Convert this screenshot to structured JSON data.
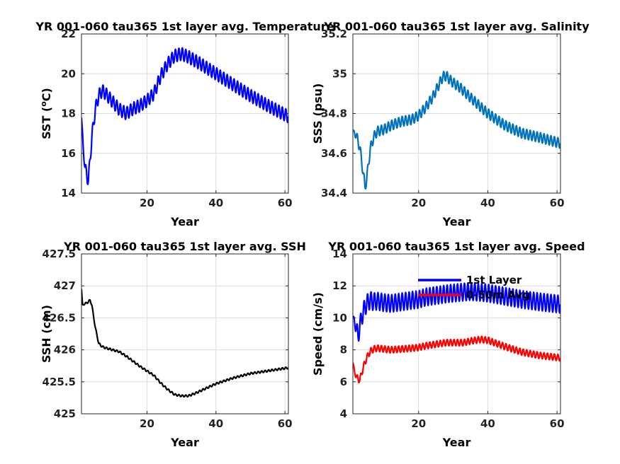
{
  "chart_data": [
    {
      "type": "line",
      "title": "YR 001-060 tau365 1st layer avg. Temperature",
      "xlabel": "Year",
      "ylabel": "SST (°C)",
      "ylabel_main": "SST (",
      "ylabel_sup": "o",
      "ylabel_tail": "C)",
      "xlim": [
        1,
        61
      ],
      "ylim": [
        14,
        22
      ],
      "xticks": [
        20,
        40,
        60
      ],
      "yticks": [
        14,
        16,
        18,
        20,
        22
      ],
      "color": "#0000ff",
      "osc_amp": 0.32,
      "series": [
        {
          "x": [
            1,
            1.5,
            2,
            3,
            4,
            5,
            6,
            7,
            8,
            10,
            12,
            14,
            16,
            18,
            20,
            22,
            24,
            26,
            28,
            30,
            32,
            35,
            40,
            45,
            50,
            55,
            61
          ],
          "y": [
            17.8,
            16.3,
            15.3,
            14.6,
            16.8,
            18.2,
            18.9,
            19.15,
            19.0,
            18.6,
            18.2,
            18.0,
            18.25,
            18.4,
            18.65,
            19.0,
            19.9,
            20.5,
            20.9,
            21.0,
            20.85,
            20.55,
            20.0,
            19.45,
            18.9,
            18.4,
            17.85
          ]
        }
      ]
    },
    {
      "type": "line",
      "title": "YR 001-060 tau365 1st layer avg. Salinity",
      "xlabel": "Year",
      "ylabel": "SSS (psu)",
      "xlim": [
        1,
        61
      ],
      "ylim": [
        34.4,
        35.2
      ],
      "xticks": [
        20,
        40,
        60
      ],
      "yticks": [
        34.4,
        34.6,
        34.8,
        35,
        35.2
      ],
      "ytick_labels": [
        "34.4",
        "34.6",
        "34.8",
        "35",
        "35.2"
      ],
      "color": "#0072bd",
      "osc_amp": 0.025,
      "series": [
        {
          "x": [
            1,
            2,
            3,
            4,
            4.5,
            5,
            6,
            7,
            8,
            10,
            12,
            15,
            18,
            20,
            22,
            24,
            26,
            27,
            28,
            29,
            30,
            32,
            35,
            40,
            45,
            50,
            55,
            61
          ],
          "y": [
            34.71,
            34.69,
            34.63,
            34.5,
            34.43,
            34.47,
            34.62,
            34.68,
            34.71,
            34.72,
            34.74,
            34.76,
            34.77,
            34.79,
            34.83,
            34.88,
            34.95,
            34.985,
            34.99,
            34.97,
            34.955,
            34.93,
            34.88,
            34.8,
            34.74,
            34.7,
            34.68,
            34.65
          ]
        }
      ]
    },
    {
      "type": "line",
      "title": "YR 001-060 tau365 1st layer avg. SSH",
      "xlabel": "Year",
      "ylabel": "SSH (cm)",
      "xlim": [
        1,
        61
      ],
      "ylim": [
        425,
        427.5
      ],
      "xticks": [
        20,
        40,
        60
      ],
      "yticks": [
        425,
        425.5,
        426,
        426.5,
        427,
        427.5
      ],
      "ytick_labels": [
        "425",
        "425.5",
        "426",
        "426.5",
        "427",
        "427.5"
      ],
      "color": "#000000",
      "osc_amp": 0.015,
      "series": [
        {
          "x": [
            1,
            1.3,
            2,
            3,
            3.5,
            4,
            5,
            6,
            7,
            8,
            10,
            12,
            14,
            16,
            18,
            20,
            22,
            24,
            26,
            28,
            30,
            32,
            34,
            36,
            38,
            40,
            45,
            50,
            55,
            61
          ],
          "y": [
            426.95,
            426.7,
            426.72,
            426.75,
            426.78,
            426.7,
            426.35,
            426.1,
            426.05,
            426.03,
            426.0,
            425.97,
            425.9,
            425.82,
            425.74,
            425.67,
            425.6,
            425.48,
            425.38,
            425.3,
            425.28,
            425.28,
            425.32,
            425.37,
            425.42,
            425.47,
            425.56,
            425.63,
            425.67,
            425.72
          ]
        }
      ]
    },
    {
      "type": "line",
      "title": "YR 001-060 tau365 1st layer avg. Speed",
      "xlabel": "Year",
      "ylabel": "Speed (cm/s)",
      "xlim": [
        1,
        61
      ],
      "ylim": [
        4,
        14
      ],
      "xticks": [
        20,
        40,
        60
      ],
      "yticks": [
        4,
        6,
        8,
        10,
        12,
        14
      ],
      "legend": "top-center",
      "series": [
        {
          "name": "1st Layer",
          "color": "#0000ff",
          "osc_amp": 0.55,
          "x": [
            1,
            2,
            2.5,
            3,
            4,
            5,
            6,
            7,
            8,
            10,
            12,
            15,
            18,
            20,
            22,
            25,
            28,
            30,
            35,
            38,
            40,
            45,
            50,
            55,
            61
          ],
          "y": [
            10.0,
            9.4,
            8.8,
            9.5,
            10.4,
            10.9,
            11.1,
            11.0,
            11.05,
            10.95,
            10.9,
            11.0,
            11.1,
            11.15,
            11.3,
            11.4,
            11.5,
            11.55,
            11.65,
            11.6,
            11.55,
            11.35,
            11.15,
            11.0,
            10.85
          ]
        },
        {
          "name": "0-50m Avg",
          "color": "#ff0000",
          "osc_amp": 0.2,
          "x": [
            1,
            1.5,
            2,
            3,
            4,
            5,
            6,
            7,
            8,
            10,
            12,
            15,
            18,
            20,
            22,
            25,
            28,
            30,
            33,
            35,
            38,
            40,
            45,
            50,
            55,
            61
          ],
          "y": [
            7.2,
            6.6,
            6.3,
            6.1,
            6.9,
            7.5,
            7.9,
            8.05,
            8.1,
            8.05,
            8.0,
            8.05,
            8.1,
            8.15,
            8.25,
            8.35,
            8.45,
            8.45,
            8.45,
            8.55,
            8.65,
            8.6,
            8.2,
            7.85,
            7.65,
            7.5
          ]
        }
      ]
    }
  ]
}
